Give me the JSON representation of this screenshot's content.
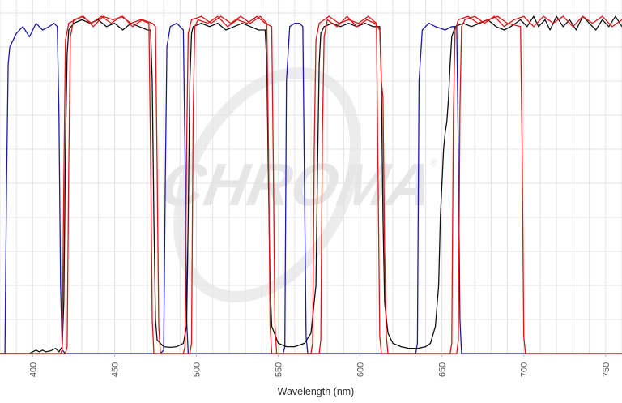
{
  "chart_data": {
    "type": "line",
    "title": "",
    "xlabel": "Wavelength (nm)",
    "ylabel": "",
    "xlim": [
      380,
      760
    ],
    "ylim": [
      0,
      100
    ],
    "x_ticks": [
      400,
      450,
      500,
      550,
      600,
      650,
      700,
      750
    ],
    "x_tick_labels": [
      "400",
      "450",
      "500",
      "550",
      "600",
      "650",
      "700",
      "750"
    ],
    "grid": true,
    "legend": "none",
    "watermark": "CHROMA",
    "watermark_mark": "®",
    "series": [
      {
        "color": "#1a1aa8",
        "points": [
          [
            380,
            0
          ],
          [
            383,
            0
          ],
          [
            384,
            50
          ],
          [
            385,
            85
          ],
          [
            386,
            90
          ],
          [
            390,
            94
          ],
          [
            394,
            96
          ],
          [
            398,
            93
          ],
          [
            402,
            97
          ],
          [
            406,
            95
          ],
          [
            410,
            96
          ],
          [
            413,
            97
          ],
          [
            415,
            96
          ],
          [
            416,
            70
          ],
          [
            417,
            20
          ],
          [
            418,
            1
          ],
          [
            420,
            0
          ],
          [
            478,
            0
          ],
          [
            480,
            1
          ],
          [
            481,
            50
          ],
          [
            482,
            90
          ],
          [
            484,
            96
          ],
          [
            488,
            97
          ],
          [
            492,
            95
          ],
          [
            493,
            60
          ],
          [
            494,
            10
          ],
          [
            495,
            0
          ],
          [
            553,
            0
          ],
          [
            554,
            2
          ],
          [
            555,
            80
          ],
          [
            557,
            96
          ],
          [
            560,
            97
          ],
          [
            563,
            97
          ],
          [
            565,
            96
          ],
          [
            566,
            50
          ],
          [
            567,
            5
          ],
          [
            568,
            0
          ],
          [
            634,
            0
          ],
          [
            635,
            3
          ],
          [
            636,
            80
          ],
          [
            638,
            95
          ],
          [
            642,
            97
          ],
          [
            646,
            96
          ],
          [
            652,
            95
          ],
          [
            656,
            96
          ],
          [
            659,
            96
          ],
          [
            660,
            60
          ],
          [
            661,
            10
          ],
          [
            662,
            0
          ],
          [
            760,
            0
          ]
        ]
      },
      {
        "color": "#111111",
        "points": [
          [
            380,
            0
          ],
          [
            398,
            0
          ],
          [
            400,
            0.5
          ],
          [
            402,
            1
          ],
          [
            404,
            0.5
          ],
          [
            406,
            1
          ],
          [
            408,
            0.5
          ],
          [
            411,
            0.8
          ],
          [
            414,
            1.5
          ],
          [
            416,
            0.5
          ],
          [
            418,
            2
          ],
          [
            419,
            15
          ],
          [
            420,
            60
          ],
          [
            421,
            88
          ],
          [
            422,
            95
          ],
          [
            425,
            97
          ],
          [
            430,
            98
          ],
          [
            435,
            97
          ],
          [
            440,
            98
          ],
          [
            445,
            96
          ],
          [
            450,
            97
          ],
          [
            455,
            95
          ],
          [
            460,
            97
          ],
          [
            465,
            96
          ],
          [
            470,
            95
          ],
          [
            472,
            95
          ],
          [
            473,
            80
          ],
          [
            474,
            40
          ],
          [
            475,
            10
          ],
          [
            476,
            4
          ],
          [
            480,
            2
          ],
          [
            484,
            1.8
          ],
          [
            488,
            2
          ],
          [
            492,
            3
          ],
          [
            494,
            8
          ],
          [
            495,
            40
          ],
          [
            496,
            80
          ],
          [
            497,
            94
          ],
          [
            498,
            96
          ],
          [
            503,
            97
          ],
          [
            508,
            96
          ],
          [
            513,
            97
          ],
          [
            518,
            95
          ],
          [
            523,
            96
          ],
          [
            528,
            97
          ],
          [
            533,
            96
          ],
          [
            538,
            95
          ],
          [
            542,
            95
          ],
          [
            543,
            85
          ],
          [
            544,
            50
          ],
          [
            545,
            20
          ],
          [
            546,
            8
          ],
          [
            550,
            3
          ],
          [
            555,
            2
          ],
          [
            560,
            2
          ],
          [
            566,
            3
          ],
          [
            570,
            6
          ],
          [
            573,
            20
          ],
          [
            574,
            55
          ],
          [
            575,
            85
          ],
          [
            576,
            94
          ],
          [
            578,
            96
          ],
          [
            583,
            97
          ],
          [
            588,
            96
          ],
          [
            593,
            97
          ],
          [
            598,
            96
          ],
          [
            603,
            97
          ],
          [
            608,
            96
          ],
          [
            612,
            96
          ],
          [
            613,
            80
          ],
          [
            614,
            40
          ],
          [
            615,
            15
          ],
          [
            617,
            6
          ],
          [
            620,
            3
          ],
          [
            625,
            2
          ],
          [
            630,
            1.5
          ],
          [
            635,
            1.5
          ],
          [
            640,
            2
          ],
          [
            643,
            3
          ],
          [
            646,
            8
          ],
          [
            648,
            20
          ],
          [
            649,
            40
          ],
          [
            650,
            50
          ],
          [
            651,
            60
          ],
          [
            652,
            65
          ],
          [
            653,
            68
          ],
          [
            654,
            75
          ],
          [
            655,
            85
          ],
          [
            656,
            93
          ],
          [
            658,
            96
          ],
          [
            663,
            97
          ],
          [
            668,
            96
          ],
          [
            673,
            97
          ],
          [
            678,
            98
          ],
          [
            683,
            96
          ],
          [
            688,
            95
          ],
          [
            692,
            96
          ],
          [
            698,
            98
          ],
          [
            702,
            96
          ],
          [
            706,
            99
          ],
          [
            709,
            96
          ],
          [
            713,
            98
          ],
          [
            716,
            95
          ],
          [
            720,
            99
          ],
          [
            724,
            96
          ],
          [
            728,
            98
          ],
          [
            732,
            95
          ],
          [
            736,
            99
          ],
          [
            740,
            97
          ],
          [
            744,
            95
          ],
          [
            748,
            98
          ],
          [
            752,
            96
          ],
          [
            756,
            99
          ],
          [
            760,
            96
          ]
        ]
      },
      {
        "color": "#e01414",
        "points": [
          [
            380,
            0
          ],
          [
            417,
            0
          ],
          [
            418,
            1
          ],
          [
            419,
            50
          ],
          [
            420,
            92
          ],
          [
            422,
            97
          ],
          [
            426,
            98
          ],
          [
            430,
            99
          ],
          [
            436,
            97
          ],
          [
            442,
            99
          ],
          [
            448,
            97
          ],
          [
            454,
            99
          ],
          [
            460,
            97
          ],
          [
            466,
            98
          ],
          [
            471,
            97
          ],
          [
            472,
            60
          ],
          [
            473,
            10
          ],
          [
            474,
            0
          ],
          [
            492,
            0
          ],
          [
            493,
            2
          ],
          [
            494,
            60
          ],
          [
            495,
            94
          ],
          [
            497,
            98
          ],
          [
            503,
            99
          ],
          [
            509,
            97
          ],
          [
            515,
            99
          ],
          [
            521,
            97
          ],
          [
            527,
            99
          ],
          [
            533,
            97
          ],
          [
            539,
            99
          ],
          [
            543,
            97
          ],
          [
            544,
            60
          ],
          [
            545,
            8
          ],
          [
            546,
            0
          ],
          [
            570,
            0
          ],
          [
            571,
            3
          ],
          [
            572,
            60
          ],
          [
            573,
            92
          ],
          [
            575,
            97
          ],
          [
            581,
            99
          ],
          [
            587,
            97
          ],
          [
            593,
            98
          ],
          [
            599,
            97
          ],
          [
            605,
            99
          ],
          [
            610,
            97
          ],
          [
            611,
            50
          ],
          [
            612,
            5
          ],
          [
            613,
            0
          ],
          [
            652,
            0
          ],
          [
            655,
            0
          ],
          [
            656,
            3
          ],
          [
            657,
            70
          ],
          [
            658,
            95
          ],
          [
            660,
            98
          ],
          [
            666,
            99
          ],
          [
            672,
            97
          ],
          [
            678,
            98
          ],
          [
            684,
            99
          ],
          [
            690,
            97
          ],
          [
            698,
            96
          ],
          [
            699,
            60
          ],
          [
            700,
            5
          ],
          [
            701,
            0
          ],
          [
            760,
            0
          ]
        ]
      },
      {
        "color": "#e01414",
        "points": [
          [
            380,
            0
          ],
          [
            420,
            0
          ],
          [
            421,
            2
          ],
          [
            422,
            55
          ],
          [
            423,
            93
          ],
          [
            425,
            98
          ],
          [
            431,
            99
          ],
          [
            437,
            96
          ],
          [
            443,
            99
          ],
          [
            449,
            98
          ],
          [
            455,
            99
          ],
          [
            461,
            96
          ],
          [
            467,
            98
          ],
          [
            473,
            97
          ],
          [
            475,
            96
          ],
          [
            476,
            55
          ],
          [
            477,
            8
          ],
          [
            478,
            0
          ],
          [
            496,
            0
          ],
          [
            497,
            3
          ],
          [
            498,
            70
          ],
          [
            499,
            96
          ],
          [
            501,
            98
          ],
          [
            507,
            97
          ],
          [
            513,
            99
          ],
          [
            519,
            96
          ],
          [
            525,
            98
          ],
          [
            531,
            97
          ],
          [
            537,
            99
          ],
          [
            542,
            97
          ],
          [
            546,
            96
          ],
          [
            547,
            55
          ],
          [
            548,
            8
          ],
          [
            549,
            0
          ],
          [
            575,
            0
          ],
          [
            576,
            4
          ],
          [
            577,
            65
          ],
          [
            578,
            93
          ],
          [
            580,
            98
          ],
          [
            586,
            96
          ],
          [
            592,
            99
          ],
          [
            598,
            96
          ],
          [
            604,
            98
          ],
          [
            609,
            97
          ],
          [
            612,
            95
          ],
          [
            613,
            80
          ],
          [
            614,
            75
          ],
          [
            615,
            30
          ],
          [
            616,
            5
          ],
          [
            617,
            0
          ],
          [
            657,
            0
          ],
          [
            659,
            0
          ],
          [
            660,
            4
          ],
          [
            661,
            72
          ],
          [
            662,
            96
          ],
          [
            664,
            98
          ],
          [
            670,
            99
          ],
          [
            676,
            97
          ],
          [
            682,
            99
          ],
          [
            688,
            96
          ],
          [
            694,
            98
          ],
          [
            700,
            99
          ],
          [
            706,
            96
          ],
          [
            712,
            99
          ],
          [
            718,
            97
          ],
          [
            724,
            99
          ],
          [
            730,
            96
          ],
          [
            736,
            99
          ],
          [
            742,
            97
          ],
          [
            748,
            99
          ],
          [
            754,
            96
          ],
          [
            760,
            98
          ]
        ]
      }
    ]
  }
}
